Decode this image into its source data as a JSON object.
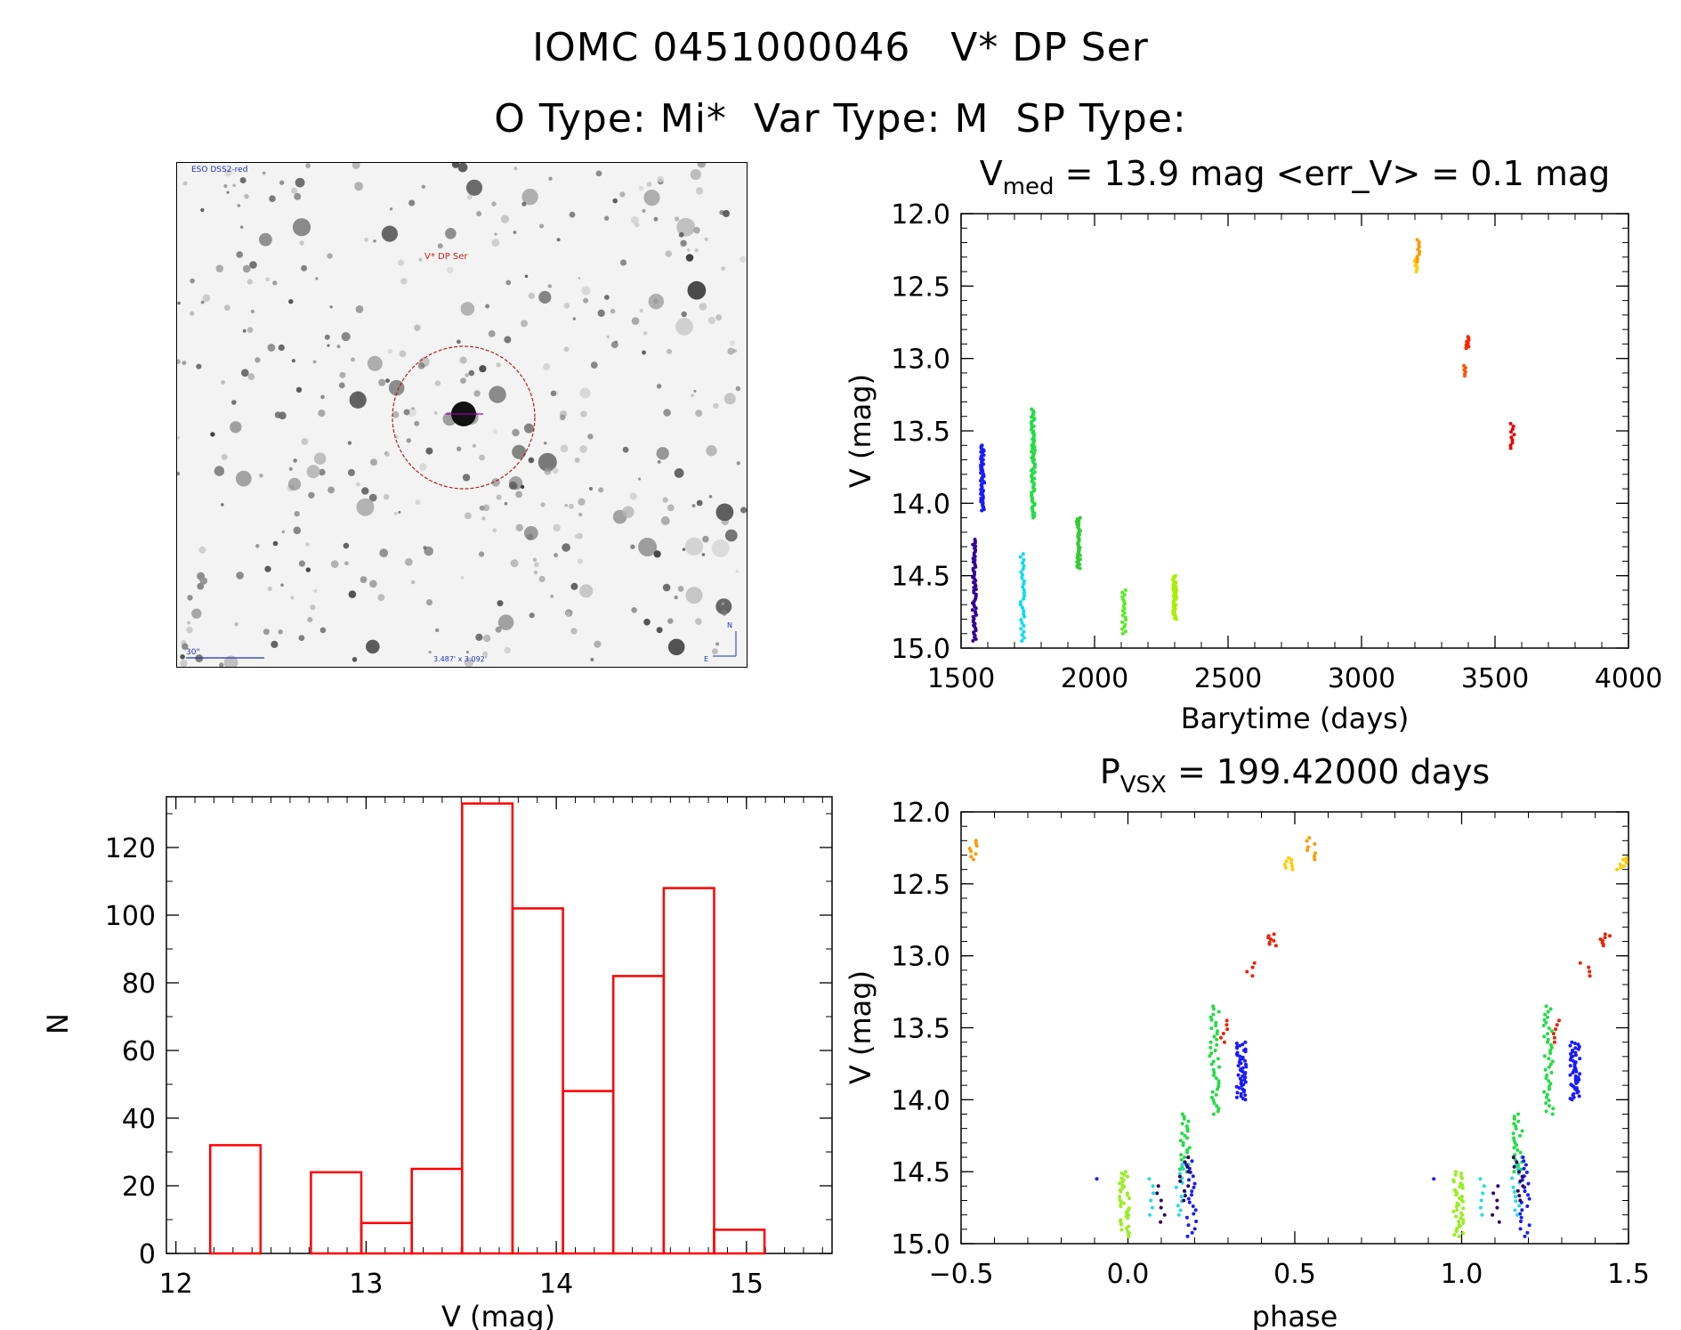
{
  "header": {
    "title_line1": "IOMC 0451000046   V* DP Ser",
    "title_line2": "O Type: Mi*  Var Type: M  SP Type:"
  },
  "sky_image": {
    "top_label": "ESO DSS2-red",
    "target_label": "V* DP Ser",
    "scale_label": "30\"",
    "fov_label": "3.487' x 3.092'",
    "north_label": "N",
    "east_label": "E"
  },
  "colors": {
    "histogram": "#ff0000",
    "axes": "#000000"
  },
  "chart_data": [
    {
      "id": "lightcurve",
      "type": "scatter",
      "title_main": "V",
      "title_sub": "med",
      "title_rest": " = 13.9 mag <err_V> = 0.1 mag",
      "xlabel": "Barytime (days)",
      "ylabel": "V (mag)",
      "xlim": [
        1500,
        4000
      ],
      "ylim": [
        15.0,
        12.0
      ],
      "xticks": [
        "1500",
        "2000",
        "2500",
        "3000",
        "3500",
        "4000"
      ],
      "yticks": [
        "12.0",
        "12.5",
        "13.0",
        "13.5",
        "14.0",
        "14.5",
        "15.0"
      ],
      "series": [
        {
          "name": "seg1",
          "color": "#1a1aff",
          "x": 1580,
          "ymin": 13.6,
          "ymax": 14.05,
          "n": 60
        },
        {
          "name": "seg2",
          "color": "#330099",
          "x": 1550,
          "ymin": 14.25,
          "ymax": 14.95,
          "n": 60
        },
        {
          "name": "seg3",
          "color": "#00ddee",
          "x": 1730,
          "ymin": 14.35,
          "ymax": 14.95,
          "n": 30
        },
        {
          "name": "seg4",
          "color": "#22dd44",
          "x": 1770,
          "ymin": 13.35,
          "ymax": 14.1,
          "n": 70
        },
        {
          "name": "seg5",
          "color": "#33cc33",
          "x": 1940,
          "ymin": 14.1,
          "ymax": 14.45,
          "n": 40
        },
        {
          "name": "seg6",
          "color": "#55ee22",
          "x": 2110,
          "ymin": 14.6,
          "ymax": 14.9,
          "n": 20
        },
        {
          "name": "seg7",
          "color": "#aaee00",
          "x": 2300,
          "ymin": 14.5,
          "ymax": 14.8,
          "n": 40
        },
        {
          "name": "seg8",
          "color": "#ffcc00",
          "x": 3205,
          "ymin": 12.3,
          "ymax": 12.4,
          "n": 8
        },
        {
          "name": "seg9",
          "color": "#ff9900",
          "x": 3215,
          "ymin": 12.18,
          "ymax": 12.33,
          "n": 10
        },
        {
          "name": "seg10",
          "color": "#ff5500",
          "x": 3385,
          "ymin": 13.05,
          "ymax": 13.12,
          "n": 6
        },
        {
          "name": "seg11",
          "color": "#ff2200",
          "x": 3395,
          "ymin": 12.85,
          "ymax": 12.93,
          "n": 8
        },
        {
          "name": "seg12",
          "color": "#ee0000",
          "x": 3565,
          "ymin": 13.45,
          "ymax": 13.62,
          "n": 10
        }
      ]
    },
    {
      "id": "histogram",
      "type": "bar",
      "xlabel": "V (mag)",
      "ylabel": "N",
      "xlim": [
        11.95,
        15.45
      ],
      "ylim": [
        0,
        135
      ],
      "xticks": [
        "12",
        "13",
        "14",
        "15"
      ],
      "yticks": [
        "0",
        "20",
        "40",
        "60",
        "80",
        "100",
        "120"
      ],
      "bin_edges": [
        12.18,
        12.445,
        12.71,
        12.975,
        13.24,
        13.505,
        13.77,
        14.035,
        14.3,
        14.565,
        14.83,
        15.095
      ],
      "values": [
        32,
        0,
        24,
        9,
        25,
        133,
        102,
        48,
        82,
        108,
        7
      ]
    },
    {
      "id": "phased",
      "type": "scatter",
      "title_main": "P",
      "title_sub": "VSX",
      "title_rest": " = 199.42000 days",
      "xlabel": "phase",
      "ylabel": "V (mag)",
      "xlim": [
        -0.5,
        1.5
      ],
      "ylim": [
        15.0,
        12.0
      ],
      "xticks": [
        "−0.5",
        "0.0",
        "0.5",
        "1.0",
        "1.5"
      ],
      "yticks": [
        "12.0",
        "12.5",
        "13.0",
        "13.5",
        "14.0",
        "14.5",
        "15.0"
      ],
      "series": [
        {
          "name": "p-orange",
          "color": "#ff9900",
          "clumps": [
            [
              -0.46,
              12.2,
              12.33,
              8
            ],
            [
              0.55,
              12.18,
              12.33,
              8
            ]
          ]
        },
        {
          "name": "p-yellow",
          "color": "#ffcc00",
          "clumps": [
            [
              0.48,
              12.32,
              12.4,
              8
            ],
            [
              1.48,
              12.32,
              12.4,
              8
            ]
          ]
        },
        {
          "name": "p-red",
          "color": "#ee2200",
          "clumps": [
            [
              0.43,
              12.85,
              12.93,
              8
            ],
            [
              1.43,
              12.85,
              12.93,
              8
            ],
            [
              0.37,
              13.05,
              13.14,
              4
            ],
            [
              1.37,
              13.05,
              13.14,
              4
            ],
            [
              0.29,
              13.45,
              13.6,
              6
            ],
            [
              1.29,
              13.45,
              13.6,
              6
            ]
          ]
        },
        {
          "name": "p-green",
          "color": "#22dd44",
          "clumps": [
            [
              0.26,
              13.35,
              14.1,
              40
            ],
            [
              1.26,
              13.35,
              14.1,
              40
            ],
            [
              0.17,
              14.1,
              14.5,
              25
            ],
            [
              1.17,
              14.1,
              14.5,
              25
            ]
          ]
        },
        {
          "name": "p-blue",
          "color": "#1a1aff",
          "clumps": [
            [
              0.34,
              13.6,
              14.0,
              50
            ],
            [
              1.34,
              13.6,
              14.0,
              50
            ],
            [
              0.19,
              14.4,
              14.95,
              22
            ],
            [
              1.19,
              14.4,
              14.95,
              22
            ],
            [
              -0.08,
              14.55,
              14.6,
              1
            ],
            [
              0.92,
              14.55,
              14.6,
              1
            ]
          ]
        },
        {
          "name": "p-lime",
          "color": "#99ee22",
          "clumps": [
            [
              -0.01,
              14.5,
              14.95,
              40
            ],
            [
              0.99,
              14.5,
              14.95,
              40
            ]
          ]
        },
        {
          "name": "p-cyan",
          "color": "#22dddd",
          "clumps": [
            [
              0.07,
              14.55,
              14.8,
              6
            ],
            [
              1.07,
              14.55,
              14.8,
              6
            ],
            [
              0.16,
              14.45,
              14.8,
              12
            ],
            [
              1.16,
              14.45,
              14.8,
              12
            ]
          ]
        },
        {
          "name": "p-purple",
          "color": "#330066",
          "clumps": [
            [
              0.1,
              14.6,
              14.85,
              6
            ],
            [
              1.1,
              14.6,
              14.85,
              6
            ],
            [
              0.17,
              14.4,
              14.7,
              10
            ],
            [
              1.17,
              14.4,
              14.7,
              10
            ]
          ]
        }
      ]
    }
  ]
}
